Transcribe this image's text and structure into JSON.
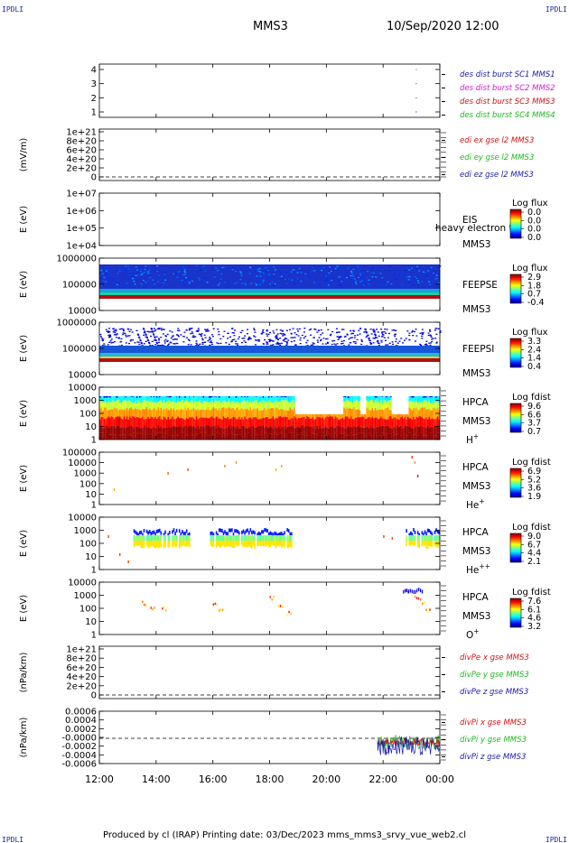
{
  "corner_labels": {
    "tl": "IPDLI",
    "tr": "IPDLI",
    "bl": "IPDLI",
    "br": "IPDLI"
  },
  "header": {
    "spacecraft": "MMS3",
    "date": "10/Sep/2020 12:00"
  },
  "footer": "Produced by cl (IRAP)    Printing date: 03/Dec/2023    mms_mms3_srvy_vue_web2.cl",
  "chart_data": {
    "type": "multi-panel time series",
    "x_axis": {
      "range": [
        "12:00",
        "00:00"
      ],
      "ticks": [
        "12:00",
        "14:00",
        "16:00",
        "18:00",
        "20:00",
        "22:00",
        "00:00"
      ]
    },
    "colors": {
      "blue": "#1a1aa8",
      "magenta": "#d21cd2",
      "red": "#cc1414",
      "green": "#1eb81e"
    },
    "panels": [
      {
        "id": "burst",
        "type": "scatter",
        "ylabel": "",
        "yticks": [
          "4",
          "3",
          "2",
          "1"
        ],
        "legend": [
          {
            "text": "des dist burst SC1 MMS1",
            "color": "#1a1aa8"
          },
          {
            "text": "des dist burst SC2 MMS2",
            "color": "#d21cd2"
          },
          {
            "text": "des dist burst SC3 MMS3",
            "color": "#cc1414"
          },
          {
            "text": "des dist burst SC4 MMS4",
            "color": "#1eb81e"
          }
        ],
        "points": [
          {
            "t": 23.15,
            "y": 4
          },
          {
            "t": 23.15,
            "y": 3
          },
          {
            "t": 23.15,
            "y": 2
          },
          {
            "t": 23.15,
            "y": 1
          }
        ]
      },
      {
        "id": "edi",
        "type": "line",
        "ylabel": "(mV/m)",
        "yticks": [
          "1e+21",
          "8e+20",
          "6e+20",
          "4e+20",
          "2e+20",
          "0"
        ],
        "legend": [
          {
            "text": "edi ex gse l2 MMS3",
            "color": "#cc1414"
          },
          {
            "text": "edi ey gse l2 MMS3",
            "color": "#1eb81e"
          },
          {
            "text": "edi ez gse l2 MMS3",
            "color": "#1a1aa8"
          }
        ]
      },
      {
        "id": "eis",
        "type": "heatmap",
        "ylabel": "E (eV)",
        "yticks": [
          "1e+07",
          "1e+06",
          "1e+05",
          "1e+04"
        ],
        "right_labels": [
          "EIS",
          "MMS3"
        ],
        "overlay_text": "heavy electron to",
        "colorbar": {
          "title": "Log flux",
          "ticks": [
            "0.0",
            "0.0",
            "0.0",
            "0.0"
          ]
        }
      },
      {
        "id": "feepse",
        "type": "heatmap",
        "ylabel": "E (eV)",
        "yticks": [
          "1000000",
          "100000",
          "10000"
        ],
        "right_labels": [
          "FEEPSE",
          "MMS3"
        ],
        "colorbar": {
          "title": "Log flux",
          "ticks": [
            "2.9",
            "1.8",
            "0.7",
            "-0.4"
          ]
        }
      },
      {
        "id": "feepsi",
        "type": "heatmap",
        "ylabel": "E (eV)",
        "yticks": [
          "1000000",
          "100000",
          "10000"
        ],
        "right_labels": [
          "FEEPSI",
          "MMS3"
        ],
        "colorbar": {
          "title": "Log flux",
          "ticks": [
            "3.3",
            "2.4",
            "1.4",
            "0.4"
          ]
        }
      },
      {
        "id": "hpca_h",
        "type": "heatmap",
        "ylabel": "E (eV)",
        "yticks": [
          "10000",
          "1000",
          "100",
          "10",
          "1"
        ],
        "right_labels": [
          "HPCA",
          "MMS3",
          "H+"
        ],
        "colorbar": {
          "title": "Log fdist",
          "ticks": [
            "9.6",
            "6.6",
            "3.7",
            "0.7"
          ]
        }
      },
      {
        "id": "hpca_he",
        "type": "heatmap",
        "ylabel": "E (eV)",
        "yticks": [
          "100000",
          "10000",
          "1000",
          "100",
          "10",
          "1"
        ],
        "right_labels": [
          "HPCA",
          "MMS3",
          "He+"
        ],
        "colorbar": {
          "title": "Log fdist",
          "ticks": [
            "6.9",
            "5.2",
            "3.6",
            "1.9"
          ]
        }
      },
      {
        "id": "hpca_hepp",
        "type": "heatmap",
        "ylabel": "E (eV)",
        "yticks": [
          "10000",
          "1000",
          "100",
          "10",
          "1"
        ],
        "right_labels": [
          "HPCA",
          "MMS3",
          "He++"
        ],
        "colorbar": {
          "title": "Log fdist",
          "ticks": [
            "9.0",
            "6.7",
            "4.4",
            "2.1"
          ]
        }
      },
      {
        "id": "hpca_o",
        "type": "heatmap",
        "ylabel": "E (eV)",
        "yticks": [
          "10000",
          "1000",
          "100",
          "10",
          "1"
        ],
        "right_labels": [
          "HPCA",
          "MMS3",
          "O+"
        ],
        "colorbar": {
          "title": "Log fdist",
          "ticks": [
            "7.6",
            "6.1",
            "4.6",
            "3.2"
          ]
        }
      },
      {
        "id": "divpe",
        "type": "line",
        "ylabel": "(nPa/km)",
        "yticks": [
          "1e+21",
          "8e+20",
          "6e+20",
          "4e+20",
          "2e+20",
          "0"
        ],
        "legend": [
          {
            "text": "divPe x gse MMS3",
            "color": "#cc1414"
          },
          {
            "text": "divPe y gse MMS3",
            "color": "#1eb81e"
          },
          {
            "text": "divPe z gse MMS3",
            "color": "#1a1aa8"
          }
        ]
      },
      {
        "id": "divpi",
        "type": "line",
        "ylabel": "(nPa/km)",
        "yticks": [
          "0.0006",
          "0.0004",
          "0.0002",
          "-0.0000",
          "-0.0002",
          "-0.0004",
          "-0.0006"
        ],
        "legend": [
          {
            "text": "divPi x gse MMS3",
            "color": "#cc1414"
          },
          {
            "text": "divPi y gse MMS3",
            "color": "#1eb81e"
          },
          {
            "text": "divPi z gse MMS3",
            "color": "#1a1aa8"
          }
        ]
      }
    ]
  }
}
